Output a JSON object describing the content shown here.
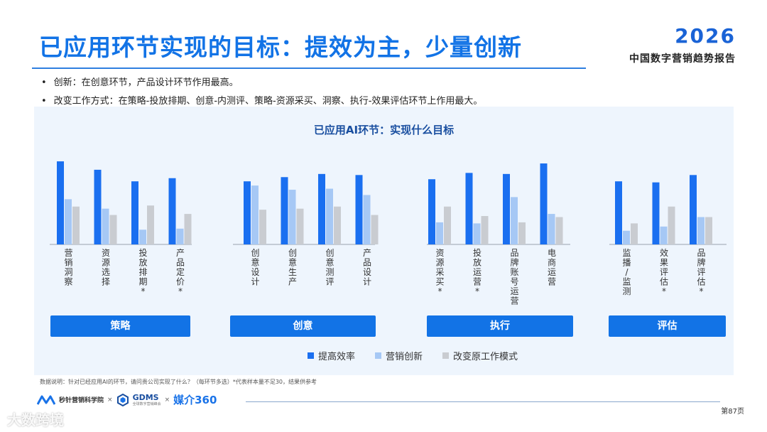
{
  "header": {
    "title": "已应用环节实现的目标：提效为主，少量创新",
    "year": "2026",
    "report_name": "中国数字营销趋势报告"
  },
  "bullets": [
    "创新：在创意环节，产品设计环节作用最高。",
    "改变工作方式：在策略-投放排期、创意-内测评、策略-资源采买、洞察、执行-效果评估环节上作用最大。"
  ],
  "chart_data": {
    "type": "bar",
    "title": "已应用AI环节：实现什么目标",
    "groups": [
      {
        "name": "策略",
        "categories": [
          "营销洞察",
          "资源选择",
          "投放排期*",
          "产品定价*"
        ]
      },
      {
        "name": "创意",
        "categories": [
          "创意设计",
          "创意生产",
          "创意测评",
          "产品设计"
        ]
      },
      {
        "name": "执行",
        "categories": [
          "资源采买*",
          "投放运营*",
          "品牌账号运营",
          "电商运营"
        ]
      },
      {
        "name": "评估",
        "categories": [
          "监播/监测",
          "效果评估*",
          "品牌评估*"
        ]
      }
    ],
    "series": [
      {
        "name": "提高效率",
        "color": "#1a6ff0",
        "values": [
          79,
          71,
          60,
          63,
          60,
          64,
          67,
          66,
          62,
          68,
          67,
          77,
          60,
          59,
          66
        ]
      },
      {
        "name": "营销创新",
        "color": "#a6c8f5",
        "values": [
          43,
          34,
          14,
          15,
          56,
          52,
          53,
          47,
          21,
          20,
          45,
          29,
          13,
          17,
          26
        ]
      },
      {
        "name": "改变原工作模式",
        "color": "#c9ccd1",
        "values": [
          36,
          28,
          37,
          29,
          33,
          34,
          36,
          28,
          36,
          27,
          21,
          26,
          20,
          36,
          26
        ]
      }
    ],
    "ylim": [
      0,
      100
    ],
    "grid": false,
    "legend": "bottom"
  },
  "footer": {
    "note": "数据说明：针对已经应用AI的环节，请问贵公司实现了什么？（每环节多选）*代表样本量不足30，结果供参考",
    "org1": "秒针营销科学院",
    "org2": "GDMS",
    "org2_sub": "全球数字营销峰会",
    "org3": "媒介360",
    "times": "×",
    "page": "第87页",
    "watermark": "大数跨境"
  },
  "colors": {
    "accent": "#1273e6",
    "panel": "#eef5fd"
  }
}
